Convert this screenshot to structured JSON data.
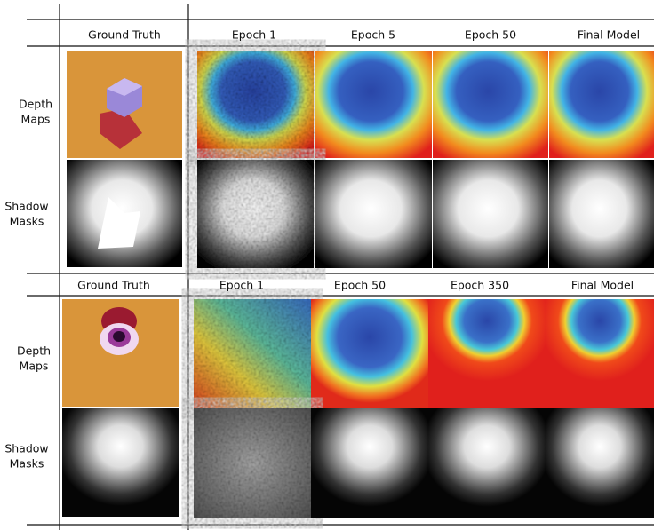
{
  "panels": [
    {
      "column_headers": [
        "Ground Truth",
        "Epoch 1",
        "Epoch 5",
        "Epoch 50",
        "Final Model"
      ],
      "row_labels": [
        [
          "Depth",
          "Maps"
        ],
        [
          "Shadow",
          "Masks"
        ]
      ]
    },
    {
      "column_headers": [
        "Ground Truth",
        "Epoch 1",
        "Epoch 50",
        "Epoch 350",
        "Final Model"
      ],
      "row_labels": [
        [
          "Depth",
          "Maps"
        ],
        [
          "Shadow",
          "Masks"
        ]
      ]
    }
  ]
}
